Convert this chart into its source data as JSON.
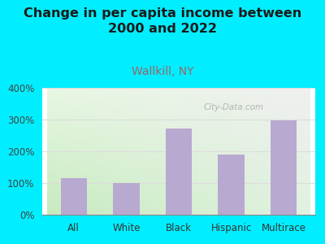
{
  "title": "Change in per capita income between\n2000 and 2022",
  "subtitle": "Wallkill, NY",
  "categories": [
    "All",
    "White",
    "Black",
    "Hispanic",
    "Multirace"
  ],
  "values": [
    115,
    100,
    272,
    190,
    298
  ],
  "bar_color": "#b8a9d0",
  "title_fontsize": 11.5,
  "subtitle_fontsize": 10,
  "subtitle_color": "#996666",
  "title_color": "#1a1a1a",
  "bg_outer_color": "#00eeff",
  "bg_inner_color_topleft": "#e8f5e2",
  "bg_inner_color_topright": "#f0f0f0",
  "bg_inner_color_bottom": "#c8e8c0",
  "ylim": [
    0,
    400
  ],
  "yticks": [
    0,
    100,
    200,
    300,
    400
  ],
  "watermark": "City-Data.com",
  "grid_color": "#dddddd"
}
